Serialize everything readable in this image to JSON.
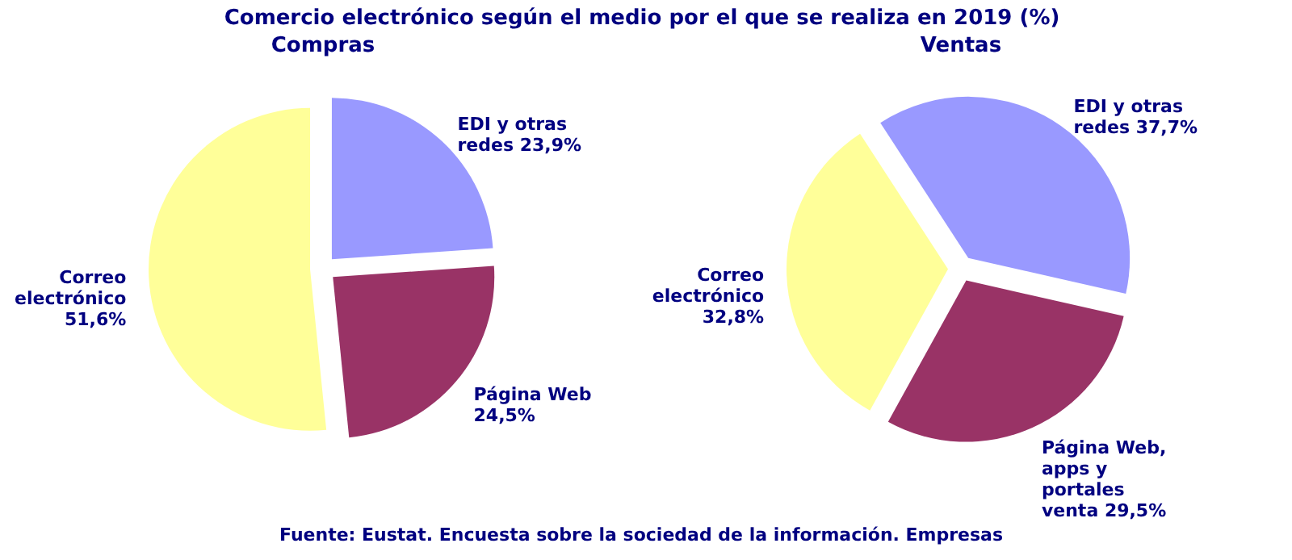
{
  "chart_data": [
    {
      "type": "pie",
      "title": "Compras",
      "categories": [
        "EDI y otras redes",
        "Página Web",
        "Correo electrónico"
      ],
      "values": [
        23.9,
        24.5,
        51.6
      ],
      "value_labels": [
        "23,9%",
        "24,5%",
        "51,6%"
      ],
      "colors": [
        "#9999ff",
        "#993366",
        "#ffff99"
      ]
    },
    {
      "type": "pie",
      "title": "Ventas",
      "categories": [
        "EDI y otras redes",
        "Página Web, apps y portales venta",
        "Correo electrónico"
      ],
      "values": [
        37.7,
        29.5,
        32.8
      ],
      "value_labels": [
        "37,7%",
        "29,5%",
        "32,8%"
      ],
      "colors": [
        "#9999ff",
        "#993366",
        "#ffff99"
      ]
    },
    {
      "type": "other",
      "title": "Comercio electrónico según el medio por el que se realiza en 2019 (%)",
      "annotations": [
        "Fuente: Eustat. Encuesta sobre la sociedad de la información. Empresas"
      ]
    }
  ]
}
